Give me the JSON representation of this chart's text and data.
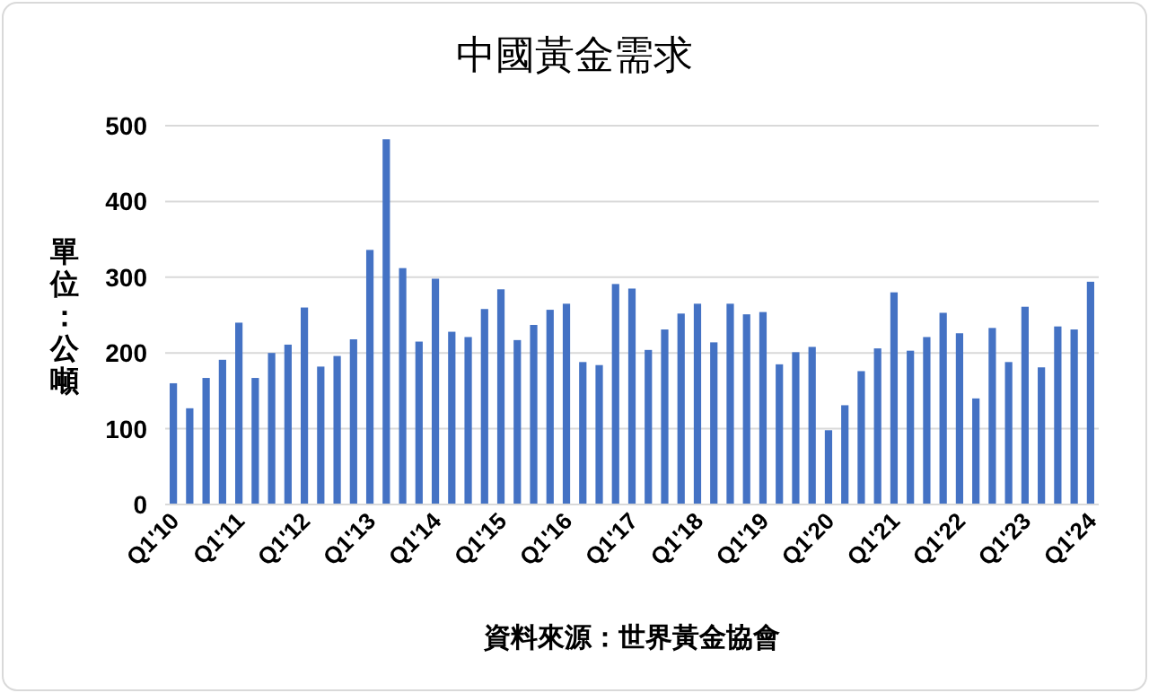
{
  "chart_data": {
    "type": "bar",
    "title": "中國黃金需求",
    "ylabel": "單位：公噸",
    "annotations": [
      "資料來源：世界黃金協會"
    ],
    "categories": [
      "Q1'10",
      null,
      null,
      null,
      "Q1'11",
      null,
      null,
      null,
      "Q1'12",
      null,
      null,
      null,
      "Q1'13",
      null,
      null,
      null,
      "Q1'14",
      null,
      null,
      null,
      "Q1'15",
      null,
      null,
      null,
      "Q1'16",
      null,
      null,
      null,
      "Q1'17",
      null,
      null,
      null,
      "Q1'18",
      null,
      null,
      null,
      "Q1'19",
      null,
      null,
      null,
      "Q1'20",
      null,
      null,
      null,
      "Q1'21",
      null,
      null,
      null,
      "Q1'22",
      null,
      null,
      null,
      "Q1'23",
      null,
      null,
      null,
      "Q1'24"
    ],
    "values": [
      160,
      127,
      167,
      191,
      240,
      167,
      200,
      211,
      260,
      182,
      196,
      218,
      336,
      482,
      312,
      215,
      298,
      228,
      221,
      258,
      284,
      217,
      237,
      257,
      265,
      188,
      184,
      291,
      285,
      204,
      231,
      252,
      265,
      214,
      265,
      251,
      254,
      185,
      201,
      208,
      98,
      131,
      176,
      206,
      280,
      203,
      221,
      253,
      226,
      140,
      233,
      188,
      261,
      181,
      235,
      231,
      294
    ],
    "color": "#4472c4",
    "ylim": [
      0,
      500
    ],
    "yticks": [
      0,
      100,
      200,
      300,
      400,
      500
    ],
    "grid": "y"
  }
}
